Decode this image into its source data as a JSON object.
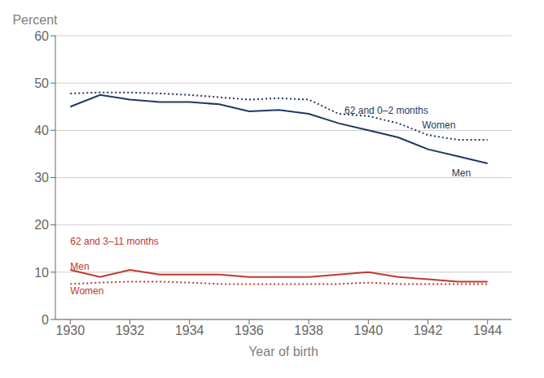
{
  "chart_data": {
    "type": "line",
    "x_label": "Year of birth",
    "y_label": "Percent",
    "x": [
      1930,
      1931,
      1932,
      1933,
      1934,
      1935,
      1936,
      1937,
      1938,
      1939,
      1940,
      1941,
      1942,
      1943,
      1944
    ],
    "series": [
      {
        "color": "#1f3864",
        "line_style": "solid",
        "values": [
          45.0,
          47.5,
          46.5,
          46.0,
          46.0,
          45.5,
          44.0,
          44.3,
          43.5,
          41.5,
          40.0,
          38.5,
          36.0,
          34.5,
          33.0
        ]
      },
      {
        "color": "#1f3864",
        "line_style": "dotted",
        "values": [
          47.8,
          48.0,
          48.0,
          47.8,
          47.5,
          47.0,
          46.5,
          46.8,
          46.5,
          43.5,
          43.0,
          41.5,
          39.0,
          38.0,
          38.0
        ]
      },
      {
        "color": "#c0392b",
        "line_style": "solid",
        "values": [
          10.5,
          9.0,
          10.5,
          9.5,
          9.5,
          9.5,
          9.0,
          9.0,
          9.0,
          9.5,
          10.0,
          9.0,
          8.5,
          8.0,
          8.0
        ]
      },
      {
        "color": "#c0392b",
        "line_style": "dotted",
        "values": [
          7.5,
          7.8,
          8.0,
          8.0,
          7.8,
          7.5,
          7.5,
          7.5,
          7.5,
          7.5,
          7.8,
          7.5,
          7.5,
          7.5,
          7.5
        ]
      }
    ],
    "xlim": [
      1929.5,
      1944.8
    ],
    "xticks": [
      1930,
      1932,
      1934,
      1936,
      1938,
      1940,
      1942,
      1944
    ],
    "ylim": [
      0,
      60
    ],
    "yticks": [
      0,
      10,
      20,
      30,
      40,
      50,
      60
    ],
    "grid": true,
    "annotations": [
      {
        "text": "62 and 0–2 months",
        "x": 1939.2,
        "y": 44.2,
        "color": "#1f3864"
      },
      {
        "text": "Women",
        "x": 1941.8,
        "y": 41.2,
        "color": "#1f3864"
      },
      {
        "text": "Men",
        "x": 1942.8,
        "y": 31.0,
        "color": "#1f3864"
      },
      {
        "text": "62 and 3–11 months",
        "x": 1930.0,
        "y": 16.5,
        "color": "#c0392b"
      },
      {
        "text": "Men",
        "x": 1930.0,
        "y": 11.2,
        "color": "#c0392b"
      },
      {
        "text": "Women",
        "x": 1930.0,
        "y": 6.0,
        "color": "#c0392b"
      }
    ]
  }
}
